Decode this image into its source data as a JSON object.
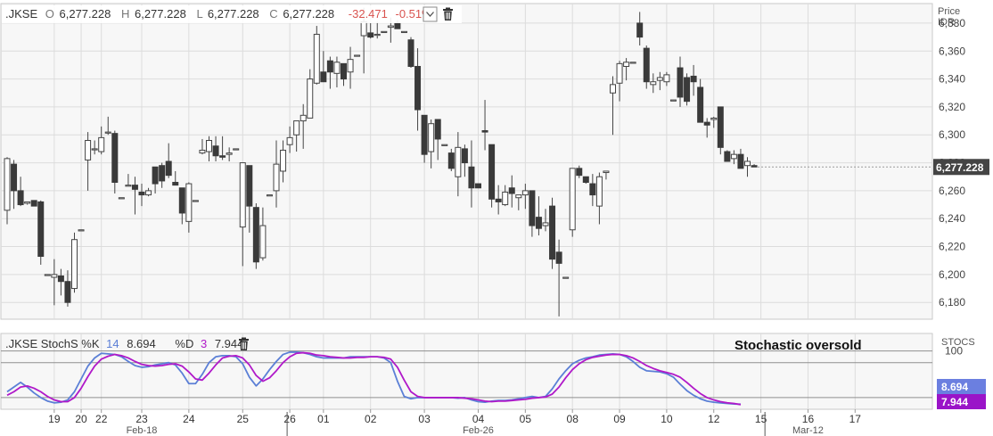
{
  "colors": {
    "up": "#ffffff",
    "down": "#3a3a3a",
    "wick": "#444444",
    "k_line": "#5b7fd6",
    "d_line": "#b019c9",
    "neg_change": "#d9534f",
    "price_tag": "#444444",
    "k_tag": "#6b7fe0",
    "d_tag": "#9a14c8",
    "panel_bg": "#f7f7f7",
    "grid": "#dcdcdc"
  },
  "header": {
    "symbol": ".JKSE",
    "open_label": "O",
    "open_value": "6,277.228",
    "high_label": "H",
    "high_value": "6,277.228",
    "low_label": "L",
    "low_value": "6,277.228",
    "close_label": "C",
    "close_value": "6,277.228",
    "change": "-32.471",
    "change_pct": "-0.51%",
    "dropdown_icon": "chevron-down-icon",
    "trash_icon": "trash-icon"
  },
  "price_axis": {
    "title": "Price",
    "currency": "IDR",
    "current_price_tag": "6,277.228"
  },
  "stoch_header": {
    "label": ".JKSE StochS %K",
    "k_period": "14",
    "k_value": "8.694",
    "d_label": "%D",
    "d_period": "3",
    "d_value": "7.944",
    "trash_icon": "trash-icon"
  },
  "annotation": "Stochastic oversold",
  "stoch_axis": {
    "title": "STOCS",
    "level_label": "100",
    "k_tag": "8.694",
    "d_tag": "7.944"
  },
  "chart_data": [
    {
      "type": "candlestick",
      "ylim": [
        6168,
        6394
      ],
      "yticks": [
        6180,
        6200,
        6220,
        6240,
        6260,
        6280,
        6300,
        6320,
        6340,
        6360,
        6380
      ],
      "ytick_labels": [
        "6,180",
        "6,200",
        "6,220",
        "6,240",
        "6,260",
        "6,280",
        "6,300",
        "6,320",
        "6,340",
        "6,360",
        "6,380"
      ],
      "x_day_labels": [
        "19",
        "20",
        "22",
        "23",
        "24",
        "25",
        "26",
        "01",
        "02",
        "03",
        "04",
        "05",
        "08",
        "09",
        "10",
        "12",
        "15",
        "16",
        "17"
      ],
      "x_month_labels": [
        "Feb-18",
        "Feb-26",
        "Mar-12"
      ],
      "day_label_bar_index": [
        7,
        11,
        14,
        20,
        27,
        35,
        42,
        47,
        54,
        62,
        70,
        77,
        84,
        91,
        98,
        105,
        112,
        119,
        126
      ],
      "month_label_bar_index": [
        20,
        70,
        119
      ],
      "day_separator_bar_index": [
        42,
        113
      ],
      "candles_ohlc": [
        [
          6246,
          6284,
          6236,
          6283
        ],
        [
          6279,
          6282,
          6247,
          6260
        ],
        [
          6260,
          6270,
          6249,
          6250
        ],
        [
          6251,
          6252,
          6250,
          6252
        ],
        [
          6253,
          6253,
          6249,
          6249
        ],
        [
          6252,
          6253,
          6207,
          6213
        ],
        [
          6200,
          6200,
          6200,
          6200
        ],
        [
          6198,
          6211,
          6178,
          6200
        ],
        [
          6199,
          6204,
          6185,
          6195
        ],
        [
          6195,
          6203,
          6177,
          6180
        ],
        [
          6190,
          6230,
          6187,
          6225
        ],
        [
          6232,
          6232,
          6232,
          6232
        ],
        [
          6282,
          6302,
          6260,
          6296
        ],
        [
          6290,
          6296,
          6286,
          6290
        ],
        [
          6288,
          6306,
          6286,
          6298
        ],
        [
          6302,
          6313,
          6300,
          6302
        ],
        [
          6301,
          6303,
          6258,
          6266
        ],
        [
          6255,
          6255,
          6255,
          6255
        ],
        [
          6264,
          6272,
          6264,
          6264
        ],
        [
          6264,
          6270,
          6243,
          6261
        ],
        [
          6259,
          6265,
          6249,
          6257
        ],
        [
          6257,
          6262,
          6256,
          6260
        ],
        [
          6277,
          6277,
          6258,
          6265
        ],
        [
          6278,
          6280,
          6262,
          6267
        ],
        [
          6281,
          6294,
          6269,
          6271
        ],
        [
          6266,
          6274,
          6264,
          6264
        ],
        [
          6262,
          6262,
          6236,
          6244
        ],
        [
          6238,
          6266,
          6230,
          6265
        ],
        [
          6253,
          6253,
          6253,
          6253
        ],
        [
          6287,
          6297,
          6286,
          6289
        ],
        [
          6288,
          6299,
          6281,
          6296
        ],
        [
          6292,
          6299,
          6281,
          6285
        ],
        [
          6285,
          6299,
          6282,
          6284
        ],
        [
          6286,
          6291,
          6281,
          6287
        ],
        [
          6290,
          6290,
          6290,
          6290
        ],
        [
          6234,
          6276,
          6206,
          6280
        ],
        [
          6278,
          6277,
          6230,
          6249
        ],
        [
          6248,
          6251,
          6204,
          6209
        ],
        [
          6212,
          6248,
          6210,
          6235
        ],
        [
          6257,
          6257,
          6257,
          6257
        ],
        [
          6260,
          6296,
          6248,
          6279
        ],
        [
          6274,
          6296,
          6266,
          6289
        ],
        [
          6293,
          6306,
          6287,
          6298
        ],
        [
          6300,
          6305,
          6288,
          6310
        ],
        [
          6310,
          6322,
          6290,
          6314
        ],
        [
          6312,
          6347,
          6312,
          6340
        ],
        [
          6337,
          6378,
          6336,
          6372
        ],
        [
          6345,
          6360,
          6342,
          6338
        ],
        [
          6353,
          6356,
          6333,
          6345
        ],
        [
          6344,
          6356,
          6334,
          6352
        ],
        [
          6351,
          6351,
          6335,
          6340
        ],
        [
          6345,
          6363,
          6333,
          6354
        ],
        [
          6357,
          6357,
          6357,
          6357
        ],
        [
          6371,
          6391,
          6344,
          6381
        ],
        [
          6373,
          6380,
          6369,
          6370
        ],
        [
          6372,
          6381,
          6369,
          6372
        ],
        [
          6374,
          6374,
          6374,
          6374
        ],
        [
          6377,
          6384,
          6366,
          6378
        ],
        [
          6380,
          6382,
          6376,
          6376
        ],
        [
          6374,
          6374,
          6374,
          6374
        ],
        [
          6368,
          6370,
          6348,
          6349
        ],
        [
          6349,
          6362,
          6303,
          6318
        ],
        [
          6314,
          6314,
          6280,
          6286
        ],
        [
          6288,
          6311,
          6276,
          6308
        ],
        [
          6311,
          6311,
          6282,
          6297
        ],
        [
          6293,
          6293,
          6293,
          6293
        ],
        [
          6287,
          6290,
          6274,
          6276
        ],
        [
          6270,
          6302,
          6256,
          6291
        ],
        [
          6290,
          6293,
          6270,
          6280
        ],
        [
          6277,
          6296,
          6248,
          6262
        ],
        [
          6265,
          6265,
          6262,
          6262
        ],
        [
          6303,
          6325,
          6289,
          6302
        ],
        [
          6293,
          6293,
          6248,
          6254
        ],
        [
          6254,
          6264,
          6243,
          6252
        ],
        [
          6250,
          6264,
          6249,
          6259
        ],
        [
          6262,
          6271,
          6248,
          6258
        ],
        [
          6255,
          6256,
          6246,
          6257
        ],
        [
          6257,
          6265,
          6247,
          6260
        ],
        [
          6260,
          6260,
          6227,
          6235
        ],
        [
          6241,
          6256,
          6228,
          6233
        ],
        [
          6235,
          6247,
          6231,
          6237
        ],
        [
          6249,
          6255,
          6204,
          6211
        ],
        [
          6216,
          6225,
          6170,
          6208
        ],
        [
          6198,
          6198,
          6198,
          6198
        ],
        [
          6232,
          6276,
          6227,
          6276
        ],
        [
          6276,
          6278,
          6269,
          6271
        ],
        [
          6270,
          6270,
          6265,
          6266
        ],
        [
          6265,
          6272,
          6249,
          6257
        ],
        [
          6249,
          6273,
          6236,
          6270
        ],
        [
          6273,
          6274,
          6268,
          6274
        ],
        [
          6330,
          6342,
          6300,
          6336
        ],
        [
          6337,
          6353,
          6324,
          6351
        ],
        [
          6349,
          6355,
          6339,
          6352
        ],
        [
          6352,
          6352,
          6352,
          6352
        ],
        [
          6380,
          6388,
          6364,
          6370
        ],
        [
          6362,
          6364,
          6333,
          6338
        ],
        [
          6336,
          6344,
          6330,
          6338
        ],
        [
          6339,
          6345,
          6332,
          6341
        ],
        [
          6338,
          6345,
          6335,
          6343
        ],
        [
          6325,
          6325,
          6325,
          6325
        ],
        [
          6348,
          6356,
          6320,
          6327
        ],
        [
          6341,
          6344,
          6321,
          6324
        ],
        [
          6342,
          6350,
          6328,
          6338
        ],
        [
          6334,
          6340,
          6312,
          6309
        ],
        [
          6309,
          6312,
          6298,
          6307
        ],
        [
          6311,
          6313,
          6305,
          6312
        ],
        [
          6320,
          6320,
          6286,
          6291
        ],
        [
          6288,
          6289,
          6282,
          6281
        ],
        [
          6283,
          6289,
          6279,
          6286
        ],
        [
          6286,
          6290,
          6279,
          6276
        ],
        [
          6278,
          6284,
          6270,
          6281
        ],
        [
          6278,
          6279,
          6277,
          6277
        ]
      ]
    },
    {
      "type": "line",
      "title": ".JKSE StochS %K 14 %D 3",
      "ylim": [
        0,
        130
      ],
      "yticks": [
        100
      ],
      "series": [
        {
          "name": "%K",
          "values": [
            30,
            38,
            46,
            38,
            28,
            20,
            14,
            11,
            12,
            16,
            30,
            52,
            74,
            88,
            96,
            95,
            94,
            90,
            82,
            75,
            72,
            73,
            76,
            78,
            80,
            76,
            62,
            44,
            44,
            60,
            80,
            90,
            92,
            92,
            90,
            78,
            55,
            40,
            52,
            68,
            82,
            94,
            98,
            98,
            97,
            94,
            90,
            88,
            88,
            88,
            88,
            90,
            90,
            90,
            90,
            90,
            88,
            80,
            48,
            22,
            18,
            20,
            20,
            20,
            20,
            20,
            20,
            19,
            20,
            16,
            13,
            12,
            14,
            15,
            15,
            16,
            18,
            20,
            22,
            20,
            22,
            35,
            52,
            66,
            78,
            84,
            88,
            90,
            93,
            94,
            95,
            94,
            90,
            82,
            72,
            66,
            65,
            64,
            61,
            55,
            43,
            32,
            24,
            18,
            14,
            12,
            11,
            10,
            9,
            8.694
          ]
        },
        {
          "name": "%D",
          "values": [
            24,
            30,
            38,
            40,
            36,
            30,
            22,
            16,
            13,
            13,
            20,
            36,
            56,
            74,
            86,
            91,
            94,
            92,
            88,
            82,
            77,
            75,
            74,
            75,
            77,
            78,
            74,
            64,
            52,
            50,
            62,
            76,
            88,
            91,
            92,
            88,
            76,
            58,
            48,
            54,
            66,
            80,
            90,
            96,
            97,
            96,
            93,
            92,
            90,
            89,
            88,
            88,
            89,
            89,
            90,
            90,
            89,
            86,
            72,
            50,
            30,
            22,
            20,
            20,
            20,
            20,
            20,
            20,
            19,
            18,
            16,
            14,
            13,
            14,
            14,
            15,
            16,
            17,
            19,
            20,
            21,
            26,
            38,
            54,
            68,
            78,
            85,
            89,
            91,
            93,
            94,
            94,
            92,
            88,
            82,
            75,
            70,
            66,
            63,
            60,
            55,
            46,
            36,
            27,
            20,
            16,
            13,
            11,
            10,
            7.944
          ]
        }
      ]
    }
  ]
}
